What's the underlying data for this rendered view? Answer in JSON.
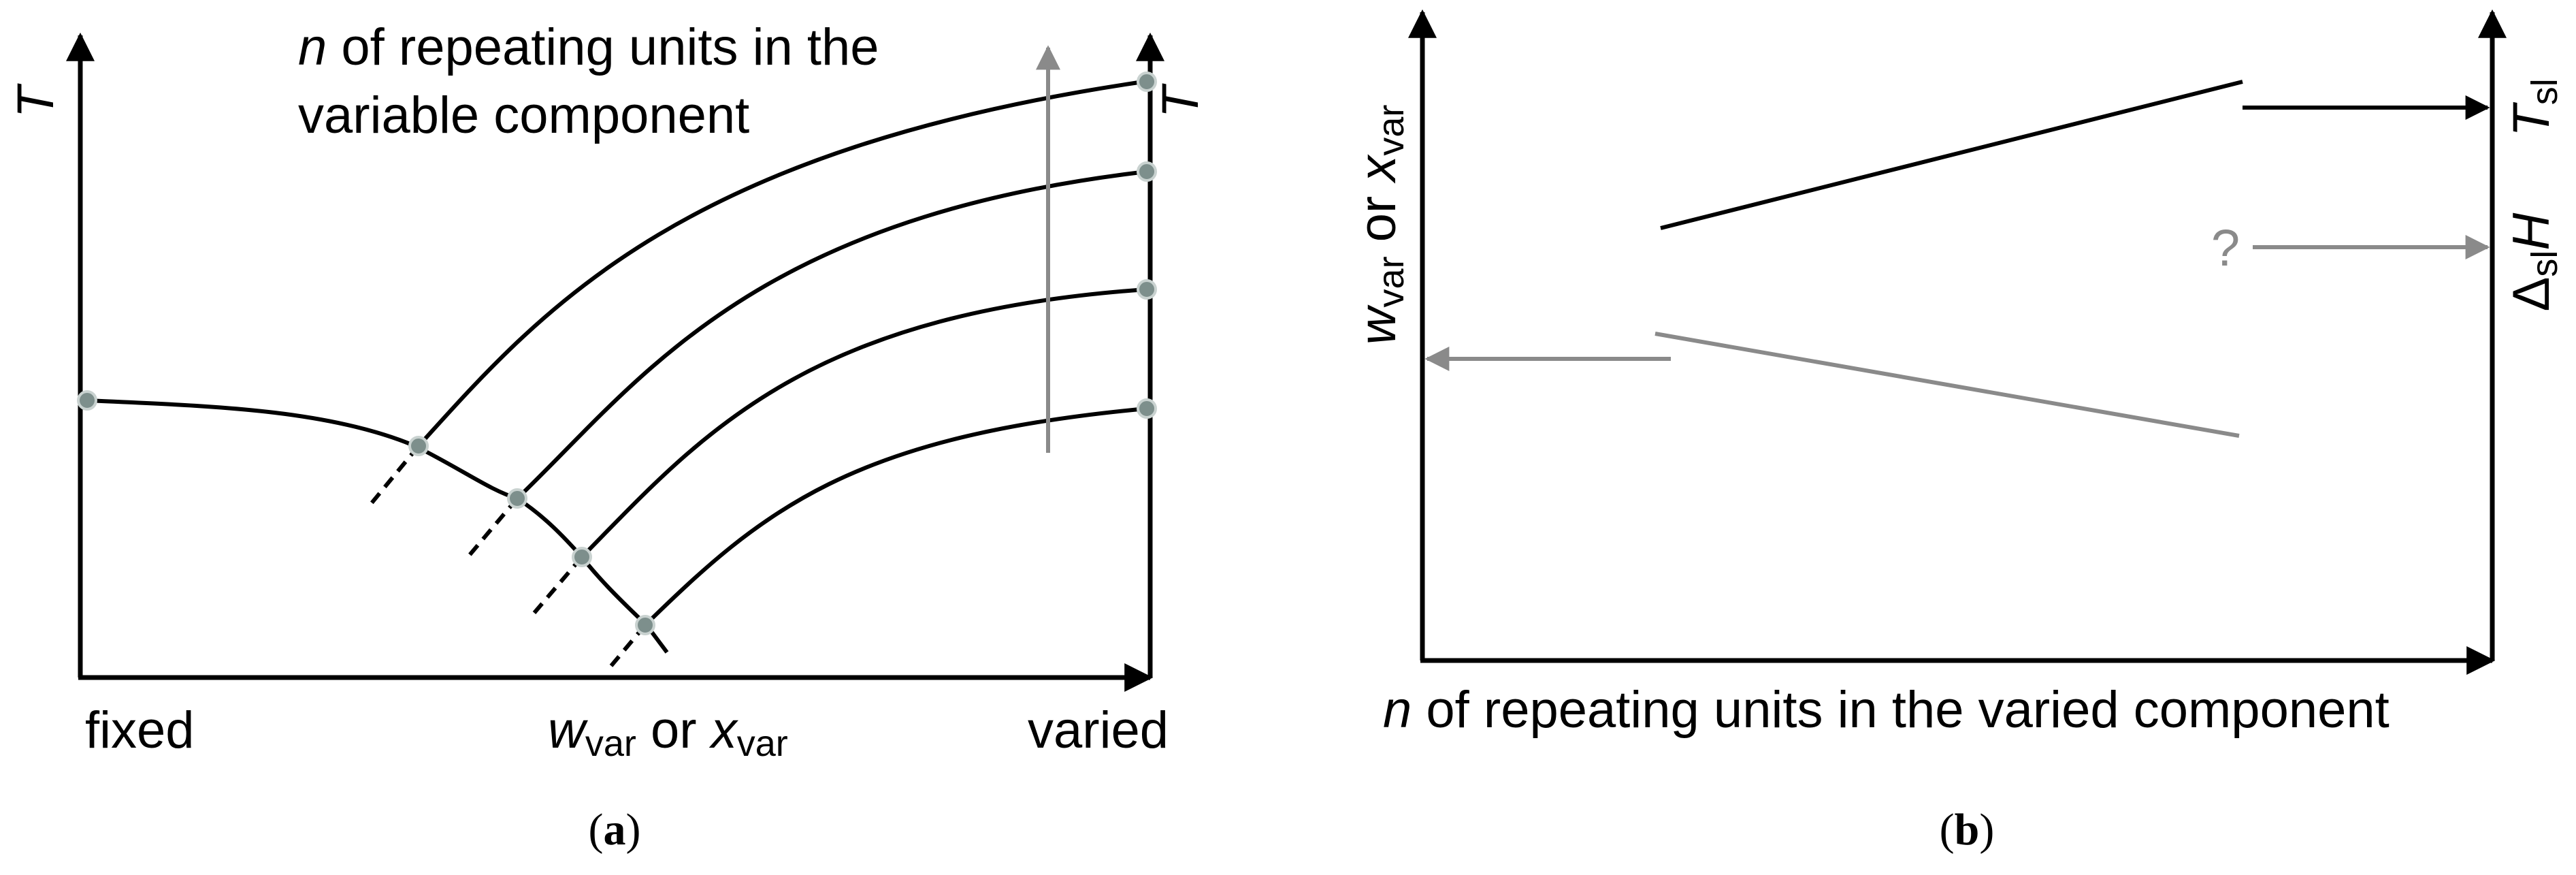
{
  "panel_a": {
    "caption_open": "(",
    "caption_letter": "a",
    "caption_close": ")",
    "y_axis_left": "T",
    "y_axis_right": "T",
    "annotation_line1_italic": "n",
    "annotation_line1_rest": " of repeating units in the",
    "annotation_line2": "variable component",
    "x_left": "fixed",
    "x_right": "varied",
    "x_mid": {
      "w_main": "w",
      "w_sub": "var",
      "or": " or ",
      "x_main": "x",
      "x_sub": "var"
    }
  },
  "panel_b": {
    "caption_open": "(",
    "caption_letter": "b",
    "caption_close": ")",
    "y_axis_left": {
      "w_main": "w",
      "w_sub": "var",
      "or": " or ",
      "x_main": "x",
      "x_sub": "var"
    },
    "right_top": {
      "main": "T",
      "sub": "sl"
    },
    "right_mid": {
      "prefix": "Δ",
      "sub": "sl",
      "main": "H"
    },
    "question": "?",
    "x_axis_italic": "n",
    "x_axis_rest": " of repeating units in the varied component"
  },
  "colors": {
    "black": "#000000",
    "gray": "#8a8a8a",
    "marker_fill": "#7d8f8c"
  }
}
